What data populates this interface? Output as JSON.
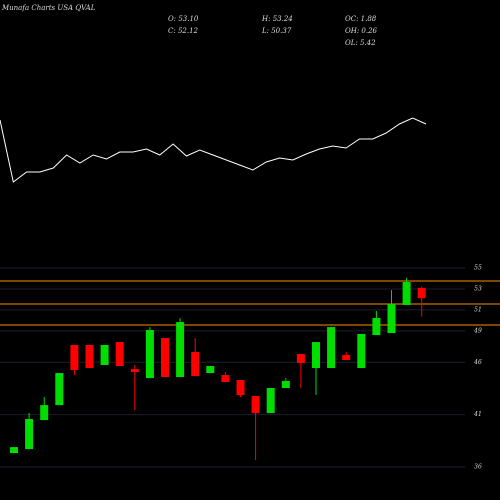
{
  "chart_data": {
    "type": "candlestick",
    "title": "Munafa Charts USA QVAL",
    "stats": [
      "O: 53.10",
      "H: 53.24",
      "OC: 1.88",
      "C: 52.12",
      "L: 50.37",
      "OH: 0.26",
      "OL: 5.42"
    ],
    "ylim": [
      36,
      55
    ],
    "yticks": [
      36,
      41,
      46,
      49,
      51,
      53,
      55
    ],
    "grid": true,
    "up_color": "#00dd00",
    "down_color": "#ff0000",
    "level_color": "#ff8c00",
    "line_color": "#ffffff",
    "levels": [
      53.76,
      51.56,
      49.56
    ],
    "candles": [
      [
        37.33,
        37.9,
        37.33,
        37.9
      ],
      [
        37.71,
        41.15,
        37.71,
        40.58
      ],
      [
        40.48,
        42.68,
        40.48,
        41.91
      ],
      [
        41.91,
        44.97,
        41.91,
        44.97
      ],
      [
        47.65,
        47.65,
        44.78,
        45.26
      ],
      [
        47.65,
        47.65,
        45.45,
        45.45
      ],
      [
        45.74,
        47.65,
        45.74,
        47.65
      ],
      [
        47.93,
        47.93,
        45.64,
        45.64
      ],
      [
        45.35,
        45.74,
        41.44,
        45.07
      ],
      [
        44.49,
        49.36,
        44.49,
        49.08
      ],
      [
        48.31,
        48.31,
        44.59,
        44.59
      ],
      [
        44.59,
        50.22,
        44.59,
        49.84
      ],
      [
        46.98,
        48.31,
        44.68,
        44.68
      ],
      [
        44.97,
        45.64,
        44.97,
        45.64
      ],
      [
        44.78,
        45.07,
        44.11,
        44.11
      ],
      [
        44.3,
        44.3,
        42.68,
        42.87
      ],
      [
        42.77,
        42.77,
        36.66,
        41.15
      ],
      [
        41.15,
        43.54,
        41.15,
        43.54
      ],
      [
        43.54,
        44.49,
        43.54,
        44.21
      ],
      [
        46.79,
        46.79,
        43.54,
        45.93
      ],
      [
        45.45,
        47.93,
        42.87,
        47.93
      ],
      [
        45.45,
        49.36,
        45.45,
        49.36
      ],
      [
        46.69,
        46.98,
        46.21,
        46.21
      ],
      [
        45.45,
        48.7,
        45.45,
        48.7
      ],
      [
        48.6,
        50.9,
        48.6,
        50.22
      ],
      [
        48.79,
        52.89,
        48.79,
        51.56
      ],
      [
        51.47,
        54.04,
        51.47,
        53.66
      ],
      [
        53.1,
        53.24,
        50.37,
        52.12
      ]
    ],
    "line": [
      80,
      18,
      28,
      28,
      32,
      45,
      37,
      45,
      41,
      48,
      48,
      51,
      45,
      56,
      44,
      50,
      45,
      40,
      35,
      30,
      38,
      42,
      40,
      46,
      51,
      54,
      52,
      61,
      61,
      67,
      76,
      82,
      76
    ]
  }
}
